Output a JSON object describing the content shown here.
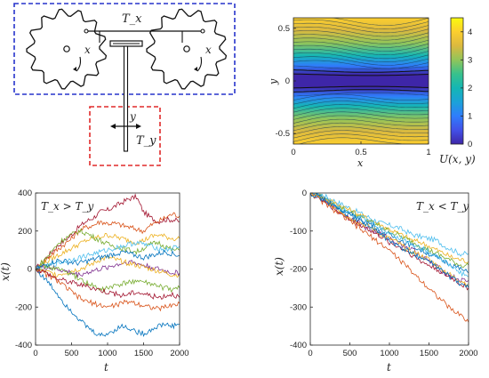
{
  "colors": {
    "blue_box": "#2633cc",
    "red_box": "#e02a2a",
    "axis": "#262626",
    "contour": "#111111",
    "colormap": [
      "#3e26a8",
      "#4250e8",
      "#2f7dfc",
      "#1ba2d8",
      "#14b6b4",
      "#38c18c",
      "#91c55a",
      "#dbb93f",
      "#fcce2e",
      "#f9fb0e"
    ]
  },
  "icons": [
    "gear-icon",
    "rotation-arrow-icon",
    "double-arrow-icon"
  ],
  "diagram": {
    "tx_label": "T_x",
    "ty_label": "T_y",
    "x_label_left": "x",
    "x_label_right": "x",
    "y_label": "y"
  },
  "chart_data": [
    {
      "type": "heatmap",
      "title": "",
      "xlabel": "x",
      "ylabel": "y",
      "xlim": [
        0,
        1
      ],
      "ylim": [
        -0.6,
        0.6
      ],
      "xticks": [
        "0",
        "0.5",
        "1"
      ],
      "yticks": [
        "0.5",
        "0",
        "-0.5"
      ],
      "colorbar": {
        "label": "U(x, y)",
        "ticks": [
          "4",
          "3",
          "2",
          "1",
          "0"
        ],
        "range": [
          0,
          4.5
        ]
      },
      "contour_lines": true,
      "grid": false
    },
    {
      "type": "line",
      "annotation": "T_x > T_y",
      "xlabel": "t",
      "ylabel": "x(t)",
      "xlim": [
        0,
        2000
      ],
      "ylim": [
        -400,
        400
      ],
      "xticks": [
        "0",
        "500",
        "1000",
        "1500",
        "2000"
      ],
      "yticks": [
        "400",
        "200",
        "0",
        "-200",
        "-400"
      ],
      "x": [
        0,
        100,
        200,
        300,
        400,
        500,
        600,
        700,
        800,
        900,
        1000,
        1100,
        1200,
        1300,
        1400,
        1500,
        1600,
        1700,
        1800,
        1900,
        2000
      ],
      "series": [
        {
          "color": "#a2142f",
          "values": [
            0,
            40,
            80,
            120,
            150,
            180,
            220,
            250,
            270,
            300,
            310,
            330,
            350,
            370,
            380,
            300,
            270,
            250,
            260,
            260,
            250
          ]
        },
        {
          "color": "#d95319",
          "values": [
            0,
            30,
            70,
            100,
            130,
            160,
            200,
            220,
            230,
            250,
            240,
            240,
            230,
            220,
            210,
            200,
            230,
            250,
            270,
            290,
            280
          ]
        },
        {
          "color": "#edb120",
          "values": [
            0,
            25,
            50,
            70,
            90,
            110,
            130,
            150,
            160,
            170,
            180,
            170,
            160,
            150,
            140,
            150,
            170,
            180,
            170,
            160,
            160
          ]
        },
        {
          "color": "#77ac30",
          "values": [
            0,
            40,
            80,
            130,
            160,
            180,
            200,
            190,
            170,
            150,
            130,
            120,
            110,
            100,
            90,
            110,
            130,
            140,
            120,
            100,
            100
          ]
        },
        {
          "color": "#4dbeee",
          "values": [
            0,
            10,
            20,
            30,
            40,
            50,
            60,
            70,
            80,
            90,
            100,
            110,
            120,
            130,
            140,
            130,
            120,
            110,
            100,
            110,
            120
          ]
        },
        {
          "color": "#7e2f8e",
          "values": [
            0,
            10,
            5,
            0,
            -10,
            -20,
            -30,
            -20,
            -10,
            0,
            10,
            20,
            30,
            40,
            30,
            20,
            10,
            0,
            -10,
            -20,
            -20
          ]
        },
        {
          "color": "#d95319",
          "values": [
            0,
            -20,
            -40,
            -60,
            -90,
            -120,
            -150,
            -170,
            -180,
            -190,
            -200,
            -190,
            -180,
            -170,
            -180,
            -190,
            -200,
            -210,
            -200,
            -190,
            -180
          ]
        },
        {
          "color": "#0072bd",
          "values": [
            0,
            -40,
            -80,
            -130,
            -180,
            -220,
            -260,
            -300,
            -330,
            -350,
            -340,
            -320,
            -300,
            -310,
            -330,
            -340,
            -320,
            -300,
            -290,
            -300,
            -290
          ]
        },
        {
          "color": "#edb120",
          "values": [
            0,
            -10,
            -20,
            -30,
            -20,
            -10,
            0,
            10,
            30,
            50,
            60,
            50,
            40,
            30,
            20,
            10,
            0,
            -10,
            -20,
            -30,
            -30
          ]
        },
        {
          "color": "#77ac30",
          "values": [
            0,
            20,
            10,
            0,
            -10,
            -30,
            -50,
            -70,
            -90,
            -110,
            -100,
            -90,
            -80,
            -70,
            -60,
            -70,
            -80,
            -90,
            -100,
            -110,
            -100
          ]
        },
        {
          "color": "#a2142f",
          "values": [
            0,
            -10,
            -30,
            -50,
            -60,
            -70,
            -80,
            -90,
            -100,
            -110,
            -120,
            -130,
            -140,
            -130,
            -120,
            -130,
            -140,
            -150,
            -140,
            -130,
            -150
          ]
        },
        {
          "color": "#0072bd",
          "values": [
            0,
            15,
            30,
            45,
            40,
            35,
            30,
            40,
            50,
            60,
            70,
            80,
            90,
            80,
            70,
            60,
            70,
            80,
            90,
            80,
            70
          ]
        }
      ]
    },
    {
      "type": "line",
      "annotation": "T_x < T_y",
      "xlabel": "t",
      "ylabel": "x(t)",
      "xlim": [
        0,
        2000
      ],
      "ylim": [
        -400,
        0
      ],
      "xticks": [
        "0",
        "500",
        "1000",
        "1500",
        "2000"
      ],
      "yticks": [
        "0",
        "-100",
        "-200",
        "-300",
        "-400"
      ],
      "x": [
        0,
        100,
        200,
        300,
        400,
        500,
        600,
        700,
        800,
        900,
        1000,
        1100,
        1200,
        1300,
        1400,
        1500,
        1600,
        1700,
        1800,
        1900,
        2000
      ],
      "series": [
        {
          "color": "#4dbeee",
          "values": [
            5,
            0,
            -10,
            -20,
            -30,
            -40,
            -50,
            -60,
            -70,
            -80,
            -85,
            -90,
            -100,
            -110,
            -115,
            -120,
            -125,
            -140,
            -150,
            -160,
            -160
          ]
        },
        {
          "color": "#edb120",
          "values": [
            5,
            -5,
            -15,
            -25,
            -35,
            -45,
            -55,
            -65,
            -75,
            -85,
            -95,
            -105,
            -115,
            -125,
            -130,
            -140,
            -150,
            -160,
            -170,
            -175,
            -180
          ]
        },
        {
          "color": "#77ac30",
          "values": [
            5,
            -5,
            -20,
            -30,
            -40,
            -50,
            -60,
            -70,
            -80,
            -90,
            -100,
            -110,
            -120,
            -130,
            -140,
            -150,
            -160,
            -170,
            -180,
            -190,
            -190
          ]
        },
        {
          "color": "#0072bd",
          "values": [
            5,
            -5,
            -15,
            -30,
            -45,
            -55,
            -65,
            -75,
            -85,
            -100,
            -110,
            -120,
            -130,
            -140,
            -150,
            -160,
            -170,
            -180,
            -190,
            -200,
            -210
          ]
        },
        {
          "color": "#7e2f8e",
          "values": [
            0,
            -10,
            -25,
            -40,
            -55,
            -65,
            -75,
            -90,
            -100,
            -110,
            -120,
            -130,
            -140,
            -150,
            -165,
            -180,
            -195,
            -210,
            -220,
            -230,
            -230
          ]
        },
        {
          "color": "#a2142f",
          "values": [
            0,
            -10,
            -25,
            -40,
            -55,
            -70,
            -80,
            -90,
            -105,
            -115,
            -130,
            -140,
            -150,
            -165,
            -180,
            -190,
            -200,
            -215,
            -225,
            -240,
            -250
          ]
        },
        {
          "color": "#d95319",
          "values": [
            0,
            -15,
            -30,
            -45,
            -60,
            -75,
            -90,
            -105,
            -120,
            -135,
            -150,
            -170,
            -190,
            -210,
            -230,
            -250,
            -270,
            -290,
            -310,
            -320,
            -340
          ]
        },
        {
          "color": "#4dbeee",
          "values": [
            0,
            -5,
            -15,
            -30,
            -40,
            -50,
            -60,
            -70,
            -80,
            -95,
            -105,
            -115,
            -125,
            -135,
            -145,
            -155,
            -165,
            -180,
            -195,
            -210,
            -220
          ]
        },
        {
          "color": "#edb120",
          "values": [
            0,
            -10,
            -20,
            -35,
            -50,
            -65,
            -75,
            -85,
            -95,
            -110,
            -120,
            -130,
            -145,
            -155,
            -165,
            -175,
            -190,
            -205,
            -220,
            -230,
            -240
          ]
        },
        {
          "color": "#0072bd",
          "values": [
            0,
            -10,
            -20,
            -35,
            -50,
            -60,
            -70,
            -80,
            -95,
            -110,
            -125,
            -140,
            -150,
            -160,
            -170,
            -180,
            -195,
            -210,
            -225,
            -240,
            -250
          ]
        }
      ]
    }
  ]
}
